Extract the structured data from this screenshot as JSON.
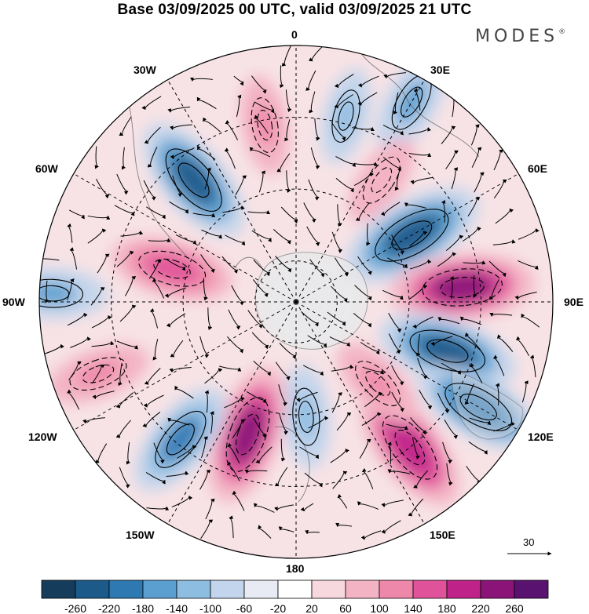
{
  "title": "Base 03/09/2025 00 UTC, valid 03/09/2025 21 UTC",
  "brand": {
    "name": "MODES",
    "mark": "®"
  },
  "longitude_labels": {
    "lon_0": "0",
    "lon_30e": "30E",
    "lon_60e": "60E",
    "lon_90e": "90E",
    "lon_120e": "120E",
    "lon_150e": "150E",
    "lon_180": "180",
    "lon_150w": "150W",
    "lon_120w": "120W",
    "lon_90w": "90W",
    "lon_60w": "60W",
    "lon_30w": "30W"
  },
  "wind_reference": {
    "label": "30"
  },
  "colorbar": {
    "ticks": [
      "-260",
      "-220",
      "-180",
      "-140",
      "-100",
      "-60",
      "-20",
      "20",
      "60",
      "100",
      "140",
      "180",
      "220",
      "260"
    ],
    "colors": [
      "#163c5c",
      "#1c5a8a",
      "#2f79b3",
      "#5b9fd0",
      "#8ebde2",
      "#c3d5ec",
      "#e8eaf4",
      "#ffffff",
      "#f8d8df",
      "#f3b3c4",
      "#ee88aa",
      "#e0539a",
      "#bf238a",
      "#8b1478",
      "#5a1270"
    ]
  },
  "map": {
    "projection": "south polar stereographic",
    "anomalies": [
      {
        "lon": 60,
        "lat_frac": 0.52,
        "value": -250
      },
      {
        "lon": 85,
        "lat_frac": 0.65,
        "value": 240
      },
      {
        "lon": 108,
        "lat_frac": 0.62,
        "value": -230
      },
      {
        "lon": 120,
        "lat_frac": 0.82,
        "value": -210
      },
      {
        "lon": 142,
        "lat_frac": 0.72,
        "value": 220
      },
      {
        "lon": 135,
        "lat_frac": 0.45,
        "value": 120
      },
      {
        "lon": 175,
        "lat_frac": 0.45,
        "value": -120
      },
      {
        "lon": -160,
        "lat_frac": 0.55,
        "value": 230
      },
      {
        "lon": -140,
        "lat_frac": 0.7,
        "value": -180
      },
      {
        "lon": -110,
        "lat_frac": 0.82,
        "value": 130
      },
      {
        "lon": -88,
        "lat_frac": 0.95,
        "value": -140
      },
      {
        "lon": -75,
        "lat_frac": 0.5,
        "value": 180
      },
      {
        "lon": -40,
        "lat_frac": 0.62,
        "value": -220
      },
      {
        "lon": -10,
        "lat_frac": 0.7,
        "value": 110
      },
      {
        "lon": 15,
        "lat_frac": 0.75,
        "value": -100
      },
      {
        "lon": 30,
        "lat_frac": 0.9,
        "value": -140
      },
      {
        "lon": 35,
        "lat_frac": 0.58,
        "value": 100
      }
    ]
  }
}
